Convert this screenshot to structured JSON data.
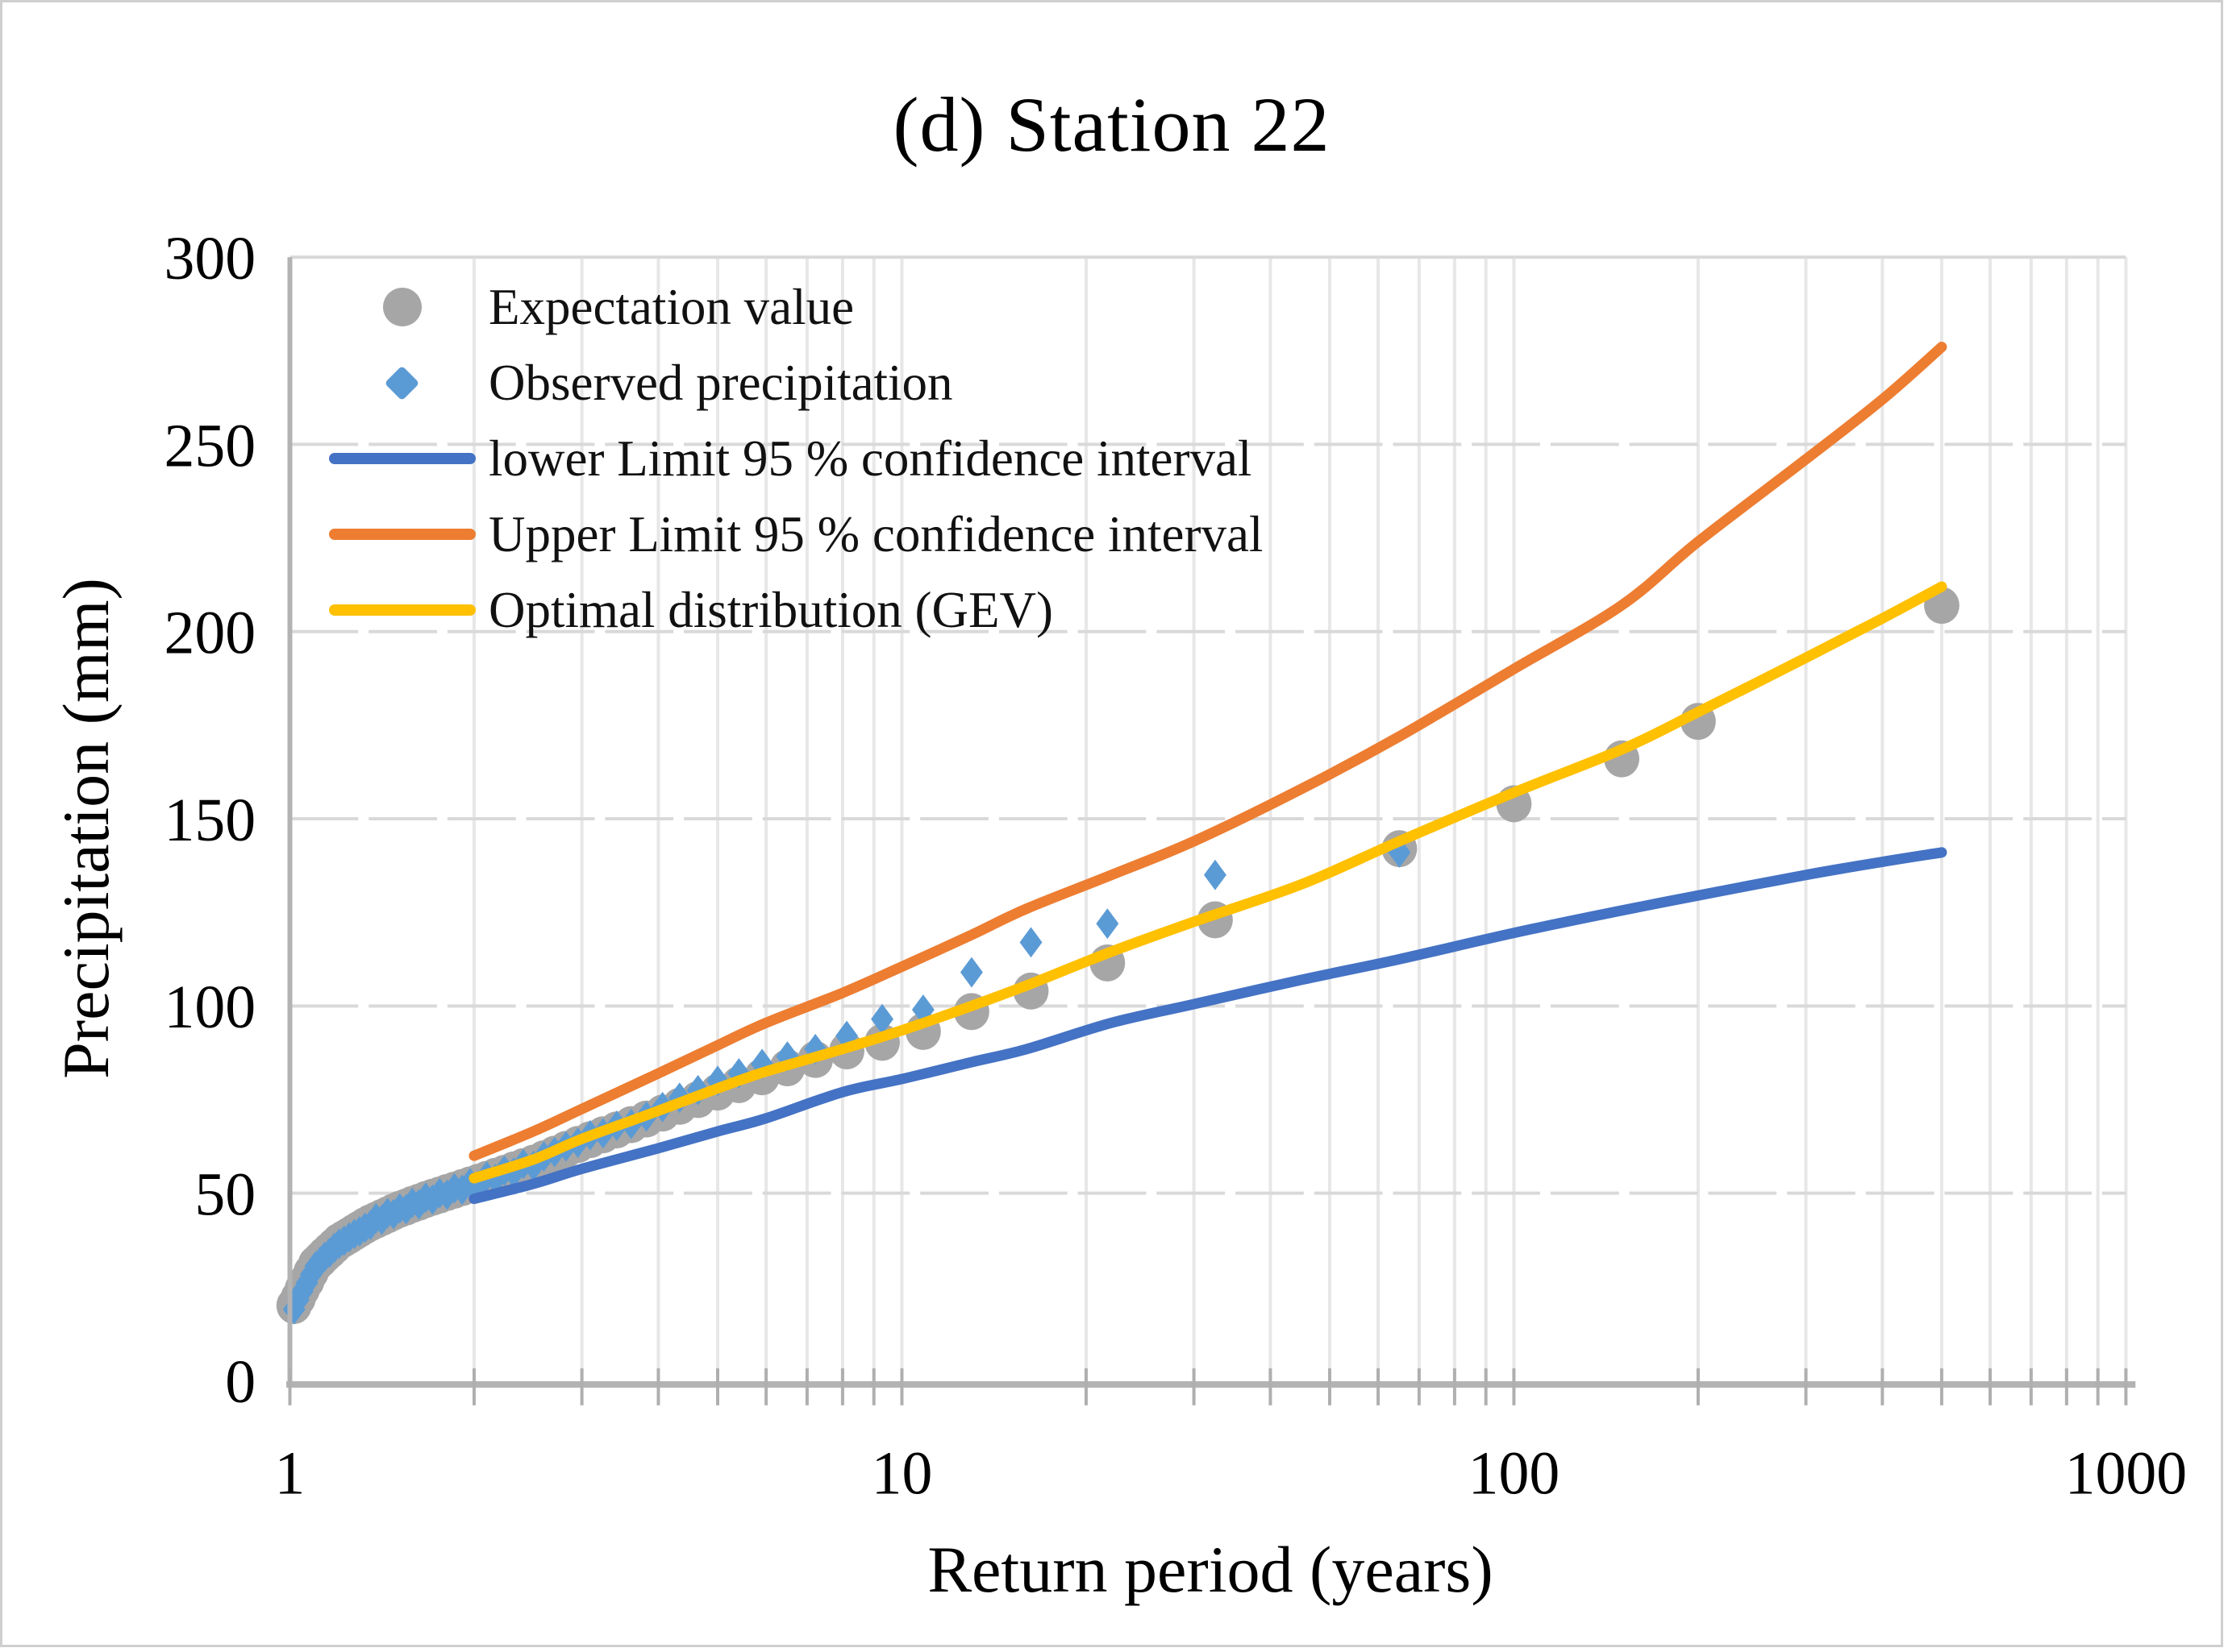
{
  "chart": {
    "title": "(d) Station 22",
    "axes": {
      "x": {
        "title": "Return period (years)",
        "scale": "log",
        "min": 1,
        "max": 1000,
        "tick_labels": [
          1,
          10,
          100,
          1000
        ],
        "gridlines": [
          1,
          2,
          3,
          4,
          5,
          6,
          7,
          8,
          9,
          10,
          20,
          30,
          40,
          50,
          60,
          70,
          80,
          90,
          100,
          200,
          300,
          400,
          500,
          600,
          700,
          800,
          900,
          1000
        ]
      },
      "y": {
        "title": "Precipitation (mm)",
        "scale": "linear",
        "min": 0,
        "max": 300,
        "step": 50,
        "tick_labels": [
          0,
          50,
          100,
          150,
          200,
          250,
          300
        ],
        "gridlines": [
          50,
          100,
          150,
          200,
          250,
          300
        ]
      }
    },
    "legend": {
      "position": "top-left-inside",
      "items": [
        {
          "label": "Expectation value",
          "marker": "circle",
          "color": "#A6A6A6"
        },
        {
          "label": "Observed precipitation",
          "marker": "diamond",
          "color": "#5B9BD5"
        },
        {
          "label": "lower Limit 95 % confidence interval",
          "marker": "line",
          "color": "#4472C4"
        },
        {
          "label": "Upper Limit 95 % confidence interval",
          "marker": "line",
          "color": "#ED7D31"
        },
        {
          "label": "Optimal distribution (GEV)",
          "marker": "line",
          "color": "#FFC000"
        }
      ]
    }
  },
  "style": {
    "grid_vertical_color": "#E7E7E7",
    "grid_horizontal_color": "#D9D9D9",
    "axis_line_color": "#B3B3B3",
    "tick_color": "#AFAFAF",
    "background": "#FFFFFF",
    "border_color": "#CFCFCF",
    "text_color": "#000000"
  },
  "chart_data": {
    "type": "scatter",
    "x_scale": "log",
    "title": "(d) Station 22",
    "xlabel": "Return period (years)",
    "ylabel": "Precipitation (mm)",
    "xlim": [
      1,
      1000
    ],
    "ylim": [
      0,
      300
    ],
    "grid": true,
    "legend_position": "upper left inside",
    "series": [
      {
        "name": "Expectation value",
        "type": "scatter",
        "marker": "circle",
        "color": "#A6A6A6",
        "points": [
          [
            1.016,
            20.0
          ],
          [
            1.032,
            22.0
          ],
          [
            1.048,
            24.4
          ],
          [
            1.066,
            26.6
          ],
          [
            1.083,
            28.9
          ],
          [
            1.102,
            31.1
          ],
          [
            1.121,
            32.3
          ],
          [
            1.14,
            33.5
          ],
          [
            1.161,
            34.7
          ],
          [
            1.182,
            35.9
          ],
          [
            1.204,
            37.1
          ],
          [
            1.226,
            37.9
          ],
          [
            1.25,
            38.7
          ],
          [
            1.275,
            39.6
          ],
          [
            1.3,
            40.4
          ],
          [
            1.327,
            41.3
          ],
          [
            1.354,
            42.1
          ],
          [
            1.383,
            42.8
          ],
          [
            1.413,
            43.5
          ],
          [
            1.444,
            44.2
          ],
          [
            1.477,
            45.0
          ],
          [
            1.512,
            45.7
          ],
          [
            1.548,
            46.3
          ],
          [
            1.585,
            47.0
          ],
          [
            1.625,
            47.6
          ],
          [
            1.667,
            48.3
          ],
          [
            1.711,
            48.9
          ],
          [
            1.757,
            49.5
          ],
          [
            1.806,
            50.2
          ],
          [
            1.857,
            50.8
          ],
          [
            1.912,
            51.5
          ],
          [
            1.97,
            52.2
          ],
          [
            2.031,
            52.9
          ],
          [
            2.097,
            53.7
          ],
          [
            2.167,
            54.5
          ],
          [
            2.241,
            55.3
          ],
          [
            2.321,
            56.2
          ],
          [
            2.407,
            57.1
          ],
          [
            2.5,
            58.0
          ],
          [
            2.6,
            59.2
          ],
          [
            2.708,
            60.4
          ],
          [
            2.826,
            61.7
          ],
          [
            2.955,
            63.0
          ],
          [
            3.095,
            64.3
          ],
          [
            3.25,
            65.6
          ],
          [
            3.421,
            66.9
          ],
          [
            3.611,
            68.3
          ],
          [
            3.824,
            69.8
          ],
          [
            4.063,
            71.4
          ],
          [
            4.333,
            73.2
          ],
          [
            4.643,
            75.0
          ],
          [
            5.0,
            77.0
          ],
          [
            5.417,
            79.0
          ],
          [
            5.909,
            81.1
          ],
          [
            6.5,
            83.5
          ],
          [
            7.222,
            85.7
          ],
          [
            8.125,
            88.0
          ],
          [
            9.286,
            90.3
          ],
          [
            10.833,
            93.2
          ],
          [
            13.0,
            98.5
          ],
          [
            16.25,
            104.0
          ],
          [
            21.667,
            111.5
          ],
          [
            32.5,
            123.0
          ],
          [
            65.0,
            142.0
          ],
          [
            100,
            154.0
          ],
          [
            150,
            166.0
          ],
          [
            200,
            176.0
          ],
          [
            500,
            207.0
          ]
        ]
      },
      {
        "name": "Observed precipitation",
        "type": "scatter",
        "marker": "diamond",
        "color": "#5B9BD5",
        "points": [
          [
            1.016,
            19.0
          ],
          [
            1.032,
            21.5
          ],
          [
            1.048,
            23.8
          ],
          [
            1.066,
            26.0
          ],
          [
            1.083,
            28.3
          ],
          [
            1.102,
            30.5
          ],
          [
            1.121,
            31.7
          ],
          [
            1.14,
            33.0
          ],
          [
            1.161,
            34.1
          ],
          [
            1.182,
            35.4
          ],
          [
            1.204,
            36.5
          ],
          [
            1.226,
            37.3
          ],
          [
            1.25,
            38.2
          ],
          [
            1.275,
            39.1
          ],
          [
            1.3,
            39.8
          ],
          [
            1.327,
            40.8
          ],
          [
            1.354,
            41.5
          ],
          [
            1.383,
            43.3
          ],
          [
            1.413,
            42.9
          ],
          [
            1.444,
            44.7
          ],
          [
            1.477,
            44.4
          ],
          [
            1.512,
            45.9
          ],
          [
            1.548,
            45.7
          ],
          [
            1.585,
            47.4
          ],
          [
            1.625,
            47.0
          ],
          [
            1.667,
            48.8
          ],
          [
            1.711,
            48.3
          ],
          [
            1.757,
            50.0
          ],
          [
            1.806,
            49.6
          ],
          [
            1.857,
            51.3
          ],
          [
            1.912,
            50.9
          ],
          [
            1.97,
            52.7
          ],
          [
            2.031,
            52.0
          ],
          [
            2.097,
            54.5
          ],
          [
            2.167,
            53.8
          ],
          [
            2.241,
            56.0
          ],
          [
            2.321,
            55.5
          ],
          [
            2.407,
            57.8
          ],
          [
            2.5,
            57.3
          ],
          [
            2.6,
            59.8
          ],
          [
            2.708,
            61.0
          ],
          [
            2.826,
            62.5
          ],
          [
            2.955,
            63.5
          ],
          [
            3.095,
            65.5
          ],
          [
            3.25,
            66.0
          ],
          [
            3.421,
            68.0
          ],
          [
            3.611,
            68.5
          ],
          [
            3.824,
            70.5
          ],
          [
            4.063,
            73.0
          ],
          [
            4.333,
            75.5
          ],
          [
            4.643,
            77.5
          ],
          [
            5.0,
            80.0
          ],
          [
            5.417,
            82.0
          ],
          [
            5.909,
            84.5
          ],
          [
            6.5,
            86.5
          ],
          [
            7.222,
            88.5
          ],
          [
            8.125,
            92.0
          ],
          [
            9.286,
            96.5
          ],
          [
            10.833,
            99.0
          ],
          [
            13.0,
            109.0
          ],
          [
            16.25,
            117.0
          ],
          [
            21.667,
            122.0
          ],
          [
            32.5,
            135.0
          ],
          [
            65.0,
            141.0
          ]
        ]
      },
      {
        "name": "lower Limit 95 % confidence interval",
        "type": "line",
        "color": "#4472C4",
        "points": [
          [
            2,
            48.5
          ],
          [
            2.5,
            52.5
          ],
          [
            3,
            56.5
          ],
          [
            4,
            62
          ],
          [
            5,
            66.5
          ],
          [
            6,
            70
          ],
          [
            8,
            77
          ],
          [
            10,
            80.5
          ],
          [
            13,
            85
          ],
          [
            16,
            88.5
          ],
          [
            22,
            95.5
          ],
          [
            30,
            100.5
          ],
          [
            45,
            107
          ],
          [
            65,
            112.5
          ],
          [
            100,
            119.5
          ],
          [
            150,
            125.5
          ],
          [
            200,
            129.5
          ],
          [
            300,
            135
          ],
          [
            400,
            138.5
          ],
          [
            500,
            141
          ]
        ]
      },
      {
        "name": "Upper Limit 95 % confidence interval",
        "type": "line",
        "color": "#ED7D31",
        "points": [
          [
            2,
            60
          ],
          [
            2.5,
            66.5
          ],
          [
            3,
            72.5
          ],
          [
            4,
            82
          ],
          [
            5,
            89.5
          ],
          [
            6,
            95.5
          ],
          [
            8,
            103.5
          ],
          [
            10,
            110.5
          ],
          [
            13,
            119
          ],
          [
            16,
            126
          ],
          [
            22,
            135
          ],
          [
            30,
            144
          ],
          [
            45,
            158
          ],
          [
            65,
            172
          ],
          [
            100,
            190
          ],
          [
            150,
            207
          ],
          [
            200,
            224
          ],
          [
            300,
            246
          ],
          [
            400,
            262
          ],
          [
            500,
            276
          ]
        ]
      },
      {
        "name": "Optimal distribution (GEV)",
        "type": "line",
        "color": "#FFC000",
        "points": [
          [
            2,
            54
          ],
          [
            2.5,
            59
          ],
          [
            3,
            64.5
          ],
          [
            4,
            72
          ],
          [
            5,
            78
          ],
          [
            6,
            82.5
          ],
          [
            8,
            88.5
          ],
          [
            10,
            93.5
          ],
          [
            13,
            100
          ],
          [
            16,
            105.5
          ],
          [
            22,
            114.5
          ],
          [
            30,
            122.5
          ],
          [
            45,
            132.5
          ],
          [
            65,
            144
          ],
          [
            100,
            157
          ],
          [
            150,
            168.5
          ],
          [
            200,
            178.5
          ],
          [
            300,
            193
          ],
          [
            400,
            203.5
          ],
          [
            500,
            212
          ]
        ]
      }
    ]
  }
}
